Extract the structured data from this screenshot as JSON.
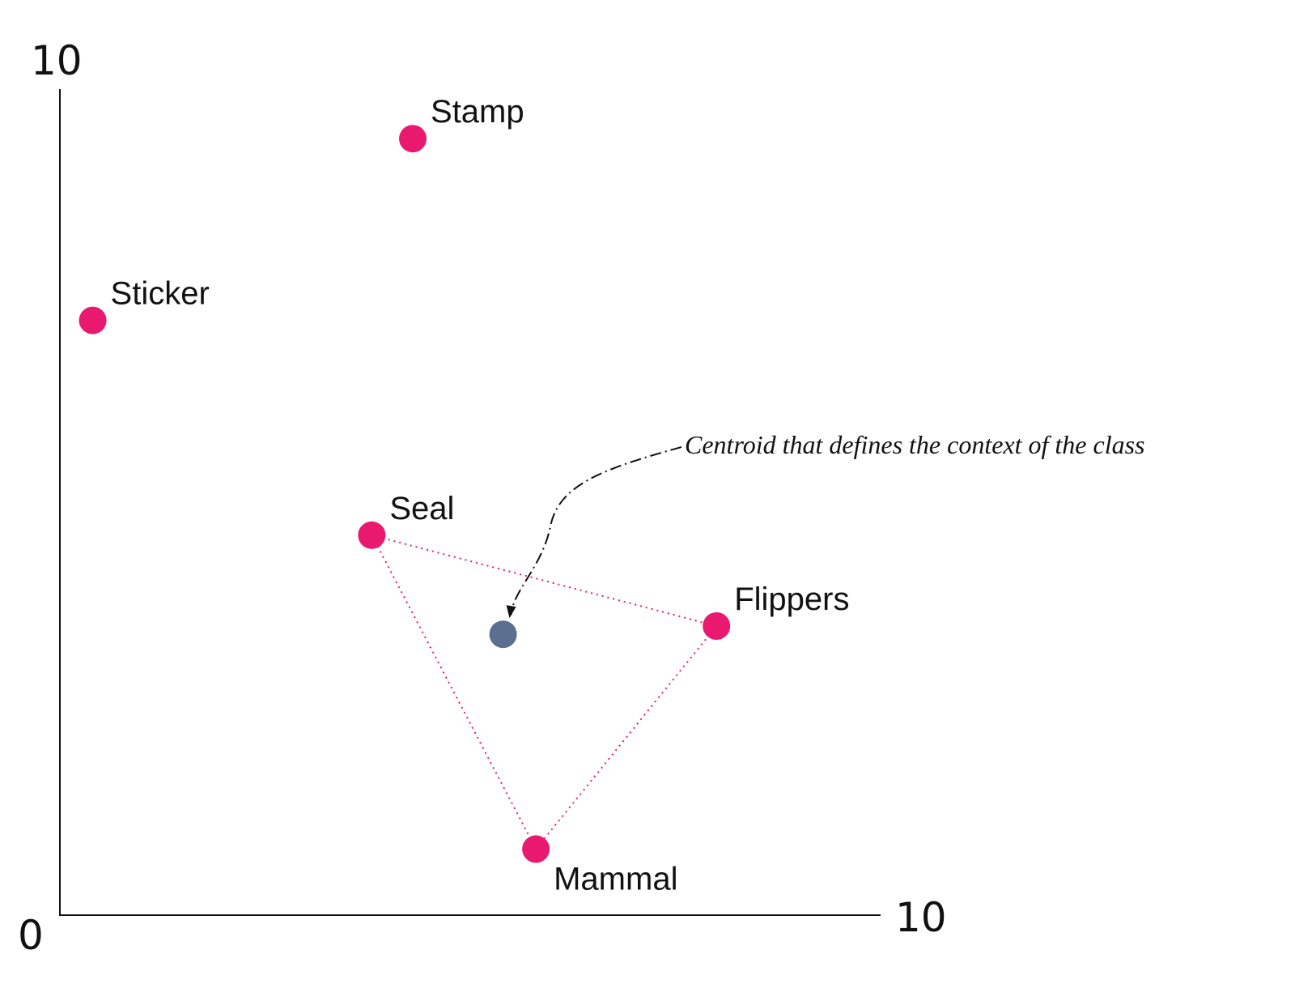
{
  "chart_data": {
    "type": "scatter",
    "title": "",
    "xlabel": "",
    "ylabel": "",
    "xlim": [
      0,
      10
    ],
    "ylim": [
      0,
      10
    ],
    "grid": false,
    "x_ticks": [
      "0",
      "10"
    ],
    "y_ticks": [
      "10"
    ],
    "points": [
      {
        "label": "Stamp",
        "x": 4.3,
        "y": 9.4
      },
      {
        "label": "Sticker",
        "x": 0.4,
        "y": 7.2
      },
      {
        "label": "Seal",
        "x": 3.8,
        "y": 4.6
      },
      {
        "label": "Flippers",
        "x": 8.0,
        "y": 3.5
      },
      {
        "label": "Mammal",
        "x": 5.8,
        "y": 0.8
      }
    ],
    "centroid": {
      "x": 5.4,
      "y": 3.4
    },
    "cluster": [
      "Seal",
      "Flippers",
      "Mammal"
    ],
    "annotation": "Centroid that defines the context of the class",
    "colors": {
      "point": "#e8196f",
      "centroid": "#5c6f91",
      "axis": "#111111"
    }
  }
}
